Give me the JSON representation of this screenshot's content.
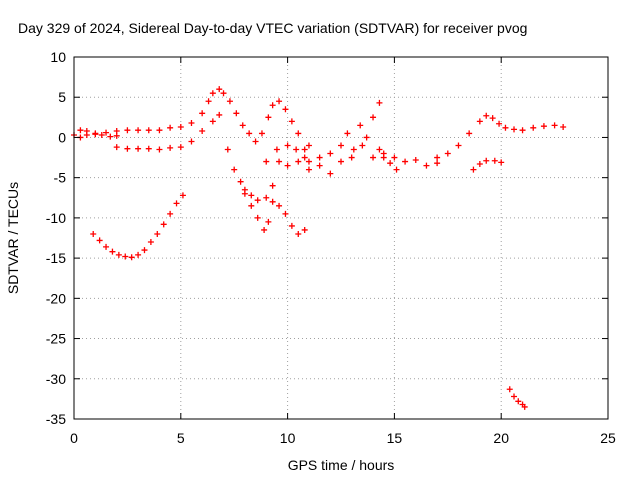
{
  "chart_data": {
    "type": "scatter",
    "title": "Day 329 of 2024, Sidereal Day-to-day VTEC variation (SDTVAR) for receiver pvog",
    "xlabel": "GPS time / hours",
    "ylabel": "SDTVAR / TECUs",
    "xlim": [
      0,
      25
    ],
    "ylim": [
      -35,
      10
    ],
    "xticks": [
      0,
      5,
      10,
      15,
      20,
      25
    ],
    "yticks": [
      10,
      5,
      0,
      -5,
      -10,
      -15,
      -20,
      -25,
      -30,
      -35
    ],
    "xtick_labels": [
      "0",
      "5",
      "10",
      "15",
      "20",
      "25"
    ],
    "ytick_labels": [
      "10",
      "5",
      "0",
      "-5",
      "-10",
      "-15",
      "-20",
      "-25",
      "-30",
      "-35"
    ],
    "grid": true,
    "marker": "plus",
    "color": "#ff0000",
    "series": [
      {
        "name": "main-upper-left",
        "x": [
          0.0,
          0.3,
          0.6,
          1.0,
          1.5,
          2.0,
          2.5,
          3.0,
          3.5,
          4.0,
          4.5,
          5.0,
          5.5,
          6.0,
          6.3,
          6.5,
          6.8,
          7.0,
          7.3,
          7.6,
          7.9,
          8.2,
          8.5,
          8.8,
          9.1,
          9.3,
          9.6,
          9.9,
          10.2,
          10.5,
          10.8,
          11.0
        ],
        "y": [
          0.3,
          0.9,
          0.8,
          0.5,
          0.6,
          0.8,
          0.9,
          0.9,
          0.9,
          0.9,
          1.2,
          1.3,
          1.8,
          3.0,
          4.5,
          5.5,
          6.0,
          5.5,
          4.5,
          3.0,
          1.5,
          0.5,
          -0.5,
          0.5,
          2.5,
          4.0,
          4.5,
          3.5,
          2.0,
          0.5,
          -1.5,
          -3.0
        ]
      },
      {
        "name": "branch-lower-left",
        "x": [
          0.3,
          0.6,
          1.0,
          1.3,
          1.7,
          2.0
        ],
        "y": [
          0.0,
          0.3,
          0.4,
          0.3,
          0.1,
          0.2
        ]
      },
      {
        "name": "low-plateau",
        "x": [
          2.0,
          2.5,
          3.0,
          3.5,
          4.0,
          4.5,
          5.0,
          5.5,
          6.0,
          6.5,
          6.8
        ],
        "y": [
          -1.2,
          -1.4,
          -1.4,
          -1.4,
          -1.5,
          -1.3,
          -1.2,
          -0.5,
          0.8,
          2.0,
          2.8
        ]
      },
      {
        "name": "dip-curve",
        "x": [
          0.9,
          1.2,
          1.5,
          1.8,
          2.1,
          2.4,
          2.7,
          3.0,
          3.3,
          3.6,
          3.9,
          4.2,
          4.5,
          4.8,
          5.1
        ],
        "y": [
          -12.0,
          -12.8,
          -13.6,
          -14.2,
          -14.6,
          -14.8,
          -14.9,
          -14.6,
          -14.0,
          -13.0,
          -12.0,
          -10.8,
          -9.5,
          -8.2,
          -7.2
        ]
      },
      {
        "name": "descending-branch",
        "x": [
          7.2,
          7.5,
          7.8,
          8.0,
          8.3,
          8.6,
          8.9,
          9.1,
          9.3,
          9.6,
          9.9,
          10.2,
          10.5,
          10.8
        ],
        "y": [
          -1.5,
          -4.0,
          -5.5,
          -7.0,
          -8.5,
          -10.0,
          -11.5,
          -10.5,
          -8.0,
          -8.5,
          -9.5,
          -11.0,
          -12.0,
          -11.5
        ]
      },
      {
        "name": "loop-branch",
        "x": [
          8.0,
          8.3,
          8.6,
          9.0,
          9.3,
          9.6,
          10.0,
          10.4,
          10.8
        ],
        "y": [
          -6.5,
          -7.2,
          -7.8,
          -7.5,
          -6.0,
          -3.0,
          -1.0,
          -1.5,
          -2.5
        ]
      },
      {
        "name": "mid-middle",
        "x": [
          9.0,
          9.5,
          10.0,
          10.5,
          11.0,
          11.5,
          12.0,
          12.5,
          13.0,
          13.5,
          14.0,
          14.5,
          15.0,
          15.5,
          16.0,
          16.5,
          17.0
        ],
        "y": [
          -3.0,
          -1.5,
          -3.5,
          -3.0,
          -4.0,
          -3.5,
          -4.5,
          -3.0,
          -2.5,
          -1.0,
          -2.5,
          -2.0,
          -2.5,
          -3.0,
          -2.8,
          -3.5,
          -3.2
        ]
      },
      {
        "name": "spiky-rise",
        "x": [
          11.0,
          11.5,
          12.0,
          12.5,
          12.8,
          13.1,
          13.4,
          13.7,
          14.0,
          14.3
        ],
        "y": [
          -1.0,
          -2.5,
          -2.0,
          -1.0,
          0.5,
          -1.5,
          1.5,
          0.0,
          2.5,
          4.3
        ]
      },
      {
        "name": "descending-to-15",
        "x": [
          14.3,
          14.5,
          14.8,
          15.1
        ],
        "y": [
          -1.5,
          -2.5,
          -3.2,
          -4.0
        ]
      },
      {
        "name": "late-rise",
        "x": [
          17.0,
          17.5,
          18.0,
          18.5,
          19.0,
          19.3,
          19.6,
          19.9,
          20.2,
          20.6,
          21.0,
          21.5,
          22.0,
          22.5,
          22.9
        ],
        "y": [
          -2.5,
          -2.0,
          -1.0,
          0.5,
          2.0,
          2.7,
          2.4,
          1.7,
          1.2,
          1.0,
          0.9,
          1.2,
          1.4,
          1.5,
          1.3
        ]
      },
      {
        "name": "segment-19",
        "x": [
          18.7,
          19.0,
          19.3,
          19.7,
          20.0
        ],
        "y": [
          -4.0,
          -3.3,
          -2.9,
          -2.9,
          -3.1
        ]
      },
      {
        "name": "isolated-bottom",
        "x": [
          20.4,
          20.6,
          20.8,
          21.0,
          21.1
        ],
        "y": [
          -31.3,
          -32.2,
          -32.8,
          -33.2,
          -33.5
        ]
      }
    ]
  }
}
